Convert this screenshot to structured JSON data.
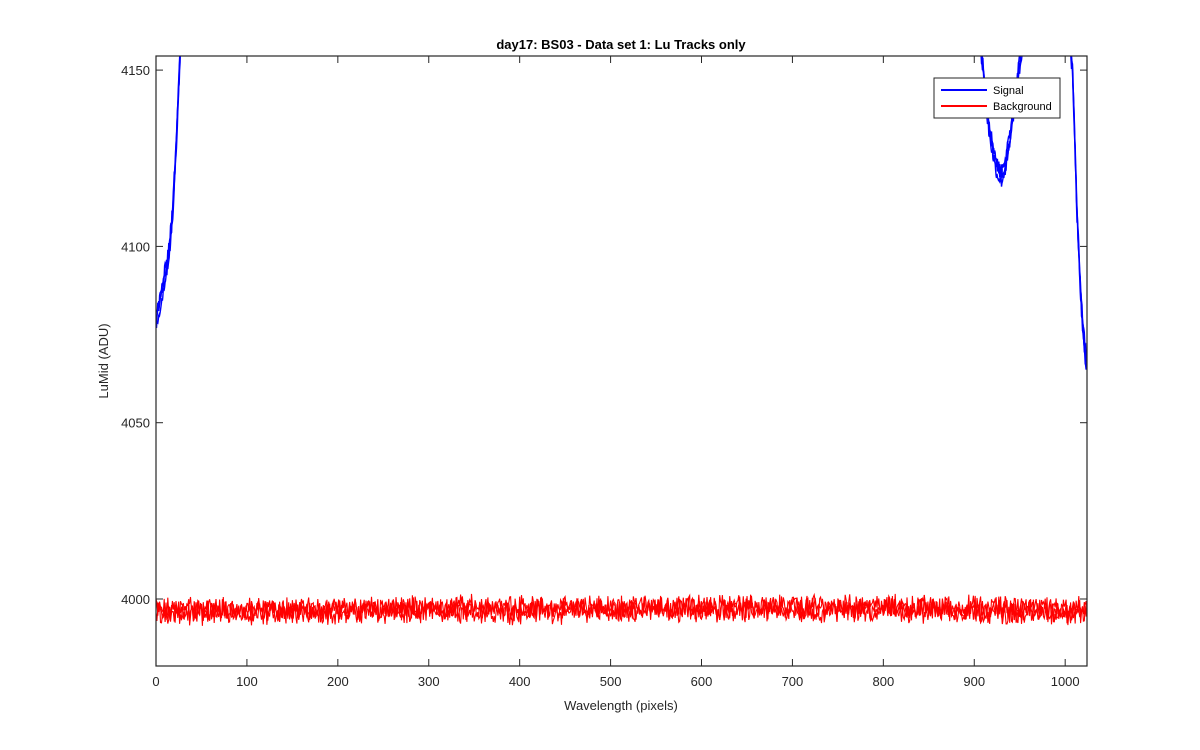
{
  "chart_data": {
    "type": "line",
    "title": "day17: BS03 - Data set 1: Lu Tracks only",
    "xlabel": "Wavelength (pixels)",
    "ylabel": "LuMid (ADU)",
    "xlim": [
      0,
      1024
    ],
    "ylim": [
      3981,
      4154
    ],
    "xticks": [
      0,
      100,
      200,
      300,
      400,
      500,
      600,
      700,
      800,
      900,
      1000
    ],
    "yticks": [
      4000,
      4050,
      4100,
      4150
    ],
    "grid": false,
    "legend_position": "top-right",
    "series": [
      {
        "name": "Signal",
        "color": "#0000ff",
        "x": [
          0,
          3,
          6,
          10,
          14,
          18,
          20,
          22,
          24,
          26,
          28,
          30,
          33,
          900,
          905,
          910,
          915,
          920,
          925,
          930,
          935,
          940,
          945,
          950,
          955,
          958,
          1000,
          1005,
          1008,
          1010,
          1013,
          1016,
          1019,
          1022,
          1024
        ],
        "y": [
          4079,
          4082,
          4086,
          4092,
          4098,
          4108,
          4118,
          4128,
          4140,
          4152,
          4162,
          4175,
          4190,
          4190,
          4162,
          4150,
          4136,
          4128,
          4122,
          4120,
          4124,
          4132,
          4143,
          4152,
          4160,
          4175,
          4180,
          4160,
          4150,
          4135,
          4110,
          4092,
          4078,
          4070,
          4066
        ],
        "traces": 3
      },
      {
        "name": "Background",
        "color": "#ff0000",
        "x_range": [
          0,
          1024
        ],
        "mean": 3997,
        "min": 3991,
        "max": 4003,
        "traces": 3
      }
    ]
  }
}
